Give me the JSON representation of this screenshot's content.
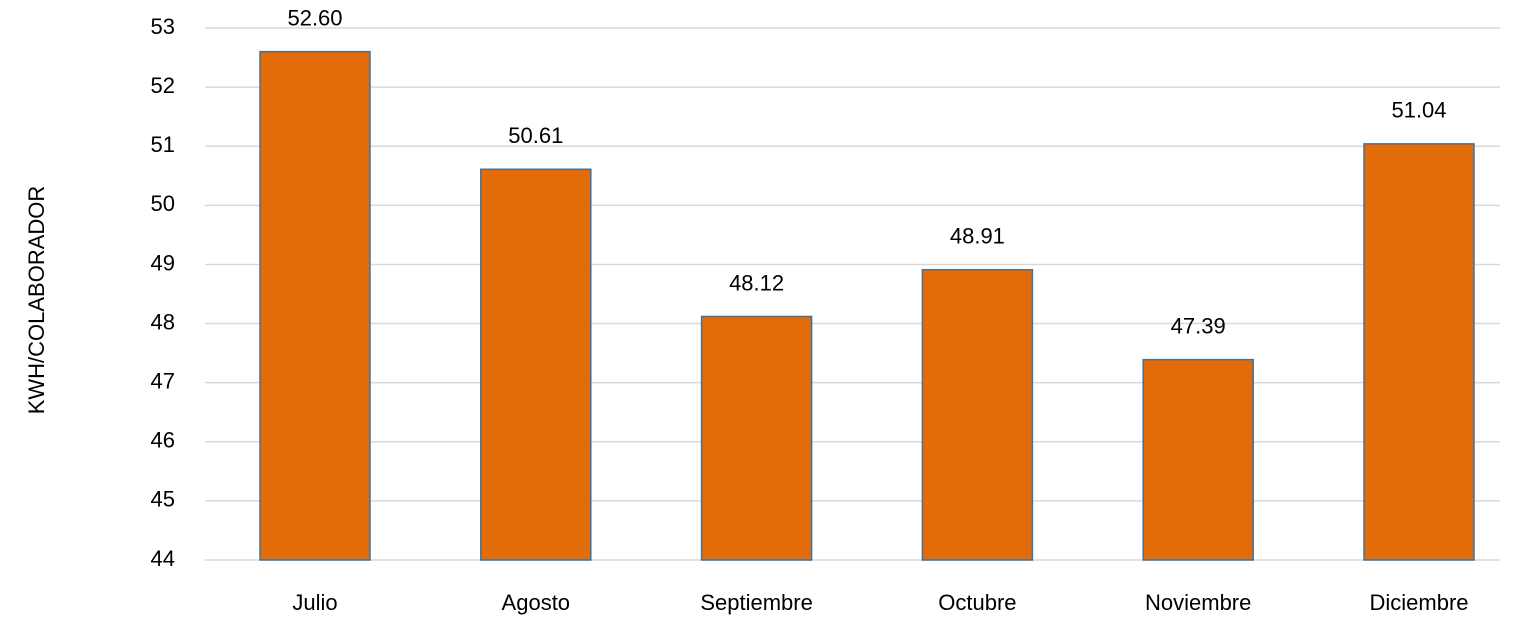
{
  "chart_data": {
    "type": "bar",
    "y_label": "KWH/COLABORADOR",
    "categories": [
      "Julio",
      "Agosto",
      "Septiembre",
      "Octubre",
      "Noviembre",
      "Diciembre"
    ],
    "values": [
      52.6,
      50.61,
      48.12,
      48.91,
      47.39,
      51.04
    ],
    "value_labels": [
      "52.60",
      "50.61",
      "48.12",
      "48.91",
      "47.39",
      "51.04"
    ],
    "color": "#e36c0a",
    "ylim": [
      44,
      53
    ],
    "yticks": [
      44,
      45,
      46,
      47,
      48,
      49,
      50,
      51,
      52,
      53
    ],
    "grid": true
  }
}
